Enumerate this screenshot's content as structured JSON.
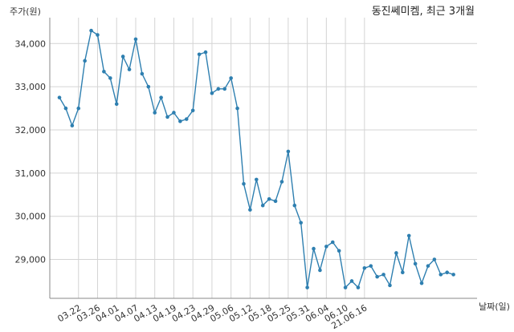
{
  "chart_data": {
    "type": "line",
    "title": "동진쎄미켐, 최근 3개월",
    "ylabel": "주가(원)",
    "xlabel": "날짜(일)",
    "ylim": [
      28100,
      34600
    ],
    "yticks": [
      29000,
      30000,
      31000,
      32000,
      33000,
      34000
    ],
    "ytick_labels": [
      "29,000",
      "30,000",
      "31,000",
      "32,000",
      "33,000",
      "34,000"
    ],
    "xtick_labels": [
      "03.22",
      "03.26",
      "04.01",
      "04.07",
      "04.13",
      "04.19",
      "04.23",
      "04.29",
      "05.06",
      "05.12",
      "05.18",
      "05.25",
      "05.31",
      "06.04",
      "06.10",
      "21.06.16"
    ],
    "xtick_index": [
      3,
      6,
      9,
      12,
      15,
      18,
      21,
      24,
      27,
      30,
      33,
      36,
      39,
      42,
      45,
      48
    ],
    "grid": true,
    "color": "#2e7fb0",
    "series": [
      {
        "values": [
          32750,
          32500,
          32100,
          32500,
          33600,
          34300,
          34200,
          33350,
          33200,
          32600,
          33700,
          33400,
          34100,
          33300,
          33000,
          32400,
          32750,
          32300,
          32400,
          32200,
          32250,
          32450,
          33750,
          33800,
          32850,
          32950,
          32950,
          33200,
          32500,
          30750,
          30150,
          30850,
          30250,
          30400,
          30350,
          30800,
          31500,
          30250,
          29850,
          28350,
          29250,
          28750,
          29300,
          29400,
          29200,
          28350,
          28500,
          28350,
          28800,
          28850,
          28600,
          28650,
          28400,
          29150,
          28700,
          29550,
          28900,
          28450,
          28850,
          29000,
          28650,
          28700,
          28650
        ]
      }
    ]
  }
}
